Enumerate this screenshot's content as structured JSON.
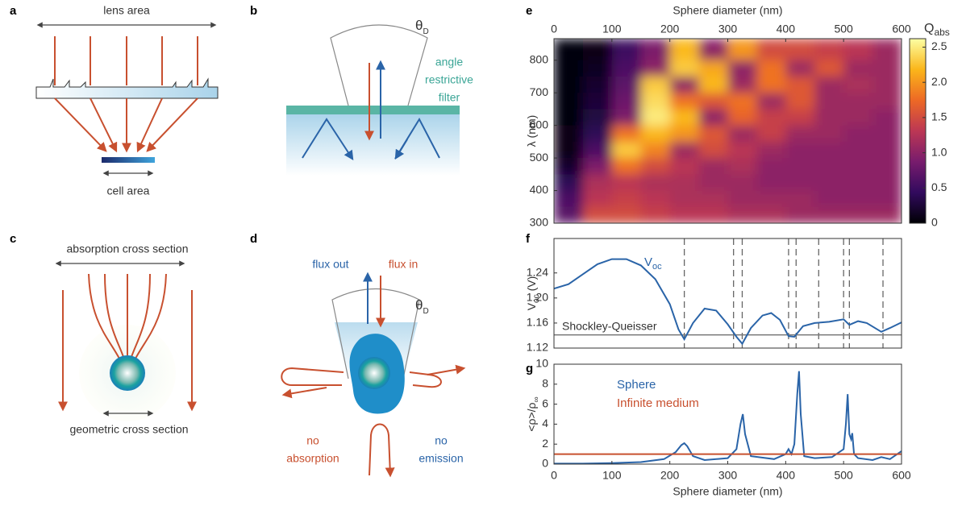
{
  "panels": {
    "a": {
      "label": "a",
      "top": "lens area",
      "bottom": "cell area"
    },
    "b": {
      "label": "b",
      "theta": "θ",
      "theta_sub": "D",
      "filter": [
        "angle",
        "restrictive",
        "filter"
      ]
    },
    "c": {
      "label": "c",
      "top": "absorption cross section",
      "bottom": "geometric cross section"
    },
    "d": {
      "label": "d",
      "flux_out": "flux out",
      "flux_in": "flux in",
      "theta": "θ",
      "theta_sub": "D",
      "left": [
        "no",
        "absorption"
      ],
      "right": [
        "no",
        "emission"
      ]
    }
  },
  "chart_data": [
    {
      "type": "heatmap",
      "panel_label": "e",
      "xlabel": "Sphere diameter (nm)",
      "xaxis": "top",
      "ylabel": "λ (nm)",
      "colorbar_title": "Q",
      "colorbar_title_sub": "abs",
      "x": [
        25,
        75,
        125,
        175,
        225,
        275,
        325,
        375,
        425,
        475,
        525,
        575
      ],
      "y": [
        825,
        775,
        725,
        675,
        625,
        575,
        525,
        475,
        425,
        375,
        325
      ],
      "values": [
        [
          0.02,
          0.1,
          0.5,
          0.9,
          2.2,
          1.0,
          2.0,
          1.5,
          1.5,
          1.4,
          1.3,
          1.1
        ],
        [
          0.02,
          0.15,
          0.6,
          1.0,
          2.3,
          2.1,
          1.0,
          1.8,
          1.1,
          1.6,
          1.1,
          1.1
        ],
        [
          0.03,
          0.2,
          0.7,
          2.3,
          1.0,
          2.2,
          1.1,
          1.8,
          1.6,
          1.1,
          1.2,
          1.1
        ],
        [
          0.04,
          0.25,
          0.8,
          2.4,
          1.8,
          1.6,
          1.8,
          1.1,
          1.6,
          1.1,
          1.1,
          1.1
        ],
        [
          0.05,
          0.3,
          0.9,
          2.5,
          2.2,
          1.0,
          1.7,
          1.4,
          1.4,
          1.1,
          1.1,
          1.0
        ],
        [
          0.07,
          0.4,
          1.8,
          2.2,
          2.0,
          1.6,
          1.1,
          1.4,
          1.1,
          1.1,
          1.0,
          1.0
        ],
        [
          0.1,
          0.6,
          2.3,
          1.9,
          1.1,
          1.5,
          1.3,
          1.1,
          1.0,
          1.0,
          1.0,
          1.0
        ],
        [
          0.2,
          0.9,
          1.8,
          1.5,
          1.3,
          1.1,
          1.2,
          1.0,
          1.0,
          1.0,
          1.0,
          1.0
        ],
        [
          0.4,
          1.2,
          1.3,
          1.2,
          1.2,
          1.1,
          1.1,
          1.0,
          1.0,
          1.0,
          1.0,
          1.0
        ],
        [
          0.6,
          1.3,
          1.4,
          1.3,
          1.2,
          1.2,
          1.1,
          1.1,
          1.1,
          1.0,
          1.0,
          1.0
        ],
        [
          0.7,
          1.5,
          1.5,
          1.4,
          1.3,
          1.3,
          1.2,
          1.2,
          1.1,
          1.1,
          1.1,
          1.1
        ]
      ],
      "xlim": [
        0,
        600
      ],
      "xticks": [
        0,
        100,
        200,
        300,
        400,
        500,
        600
      ],
      "ylim": [
        300,
        866
      ],
      "yticks": [
        300,
        400,
        500,
        600,
        700,
        800
      ],
      "zlim": [
        0,
        2.62
      ],
      "zticks": [
        0,
        0.5,
        {
          "value": 1,
          "label": "1.0"
        },
        1.5,
        {
          "value": 2,
          "label": "2.0"
        },
        2.5
      ],
      "colormap": [
        "#000004",
        "#320a5e",
        "#781c6d",
        "#bc3754",
        "#ed6925",
        "#fbb61a",
        "#fcffa4"
      ]
    },
    {
      "type": "line",
      "panel_label": "f",
      "ylabel": "V",
      "ylabel_sub": "oc",
      "ylabel_unit": "(V)",
      "xlim": [
        0,
        600
      ],
      "ylim": [
        1.12,
        1.295
      ],
      "yticks": [
        1.12,
        1.16,
        {
          "value": 1.2,
          "label": "1.20"
        },
        1.24
      ],
      "x": [
        0,
        25,
        50,
        75,
        100,
        125,
        150,
        175,
        200,
        215,
        225,
        240,
        260,
        280,
        300,
        315,
        325,
        340,
        360,
        375,
        390,
        405,
        415,
        430,
        450,
        475,
        500,
        510,
        525,
        540,
        565,
        580,
        600
      ],
      "series": [
        {
          "name": "V",
          "name_sub": "oc",
          "color": "#2a64a8",
          "values": [
            1.215,
            1.222,
            1.238,
            1.254,
            1.262,
            1.262,
            1.252,
            1.23,
            1.19,
            1.15,
            1.134,
            1.16,
            1.183,
            1.18,
            1.158,
            1.138,
            1.127,
            1.152,
            1.172,
            1.176,
            1.165,
            1.139,
            1.138,
            1.155,
            1.16,
            1.162,
            1.166,
            1.157,
            1.163,
            1.16,
            1.146,
            1.152,
            1.161
          ]
        }
      ],
      "hlines": [
        {
          "label": "Shockley-Queisser",
          "value": 1.141,
          "color": "#777777"
        }
      ],
      "vlines": [
        225,
        310,
        325,
        405,
        418,
        457,
        500,
        510,
        568
      ]
    },
    {
      "type": "line",
      "panel_label": "g",
      "ylabel": "<ρ>/ρ",
      "ylabel_sub": "∞",
      "xlabel": "Sphere diameter (nm)",
      "xlim": [
        0,
        600
      ],
      "xticks": [
        0,
        100,
        200,
        300,
        400,
        500,
        600
      ],
      "ylim": [
        0,
        10
      ],
      "yticks": [
        0,
        2,
        4,
        6,
        8,
        10
      ],
      "legend": "upper-left",
      "series": [
        {
          "name": "Sphere",
          "color": "#2a64a8",
          "x": [
            0,
            50,
            100,
            150,
            190,
            210,
            220,
            225,
            230,
            240,
            260,
            300,
            315,
            322,
            326,
            330,
            340,
            380,
            400,
            405,
            410,
            415,
            420,
            423,
            426,
            432,
            450,
            480,
            500,
            504,
            507,
            510,
            513,
            515,
            518,
            525,
            550,
            565,
            580,
            600
          ],
          "values": [
            0.05,
            0.05,
            0.1,
            0.2,
            0.5,
            1.2,
            1.9,
            2.1,
            1.8,
            0.8,
            0.4,
            0.6,
            1.5,
            4,
            5,
            3,
            0.8,
            0.5,
            1,
            1.5,
            1,
            2,
            7,
            9.3,
            5,
            0.8,
            0.6,
            0.7,
            1.5,
            4,
            7,
            3,
            2.5,
            3.1,
            1,
            0.6,
            0.4,
            0.7,
            0.5,
            1.3
          ]
        },
        {
          "name": "Infinite medium",
          "color": "#c8502f",
          "x": [
            0,
            600
          ],
          "values": [
            1,
            1
          ]
        }
      ]
    }
  ]
}
